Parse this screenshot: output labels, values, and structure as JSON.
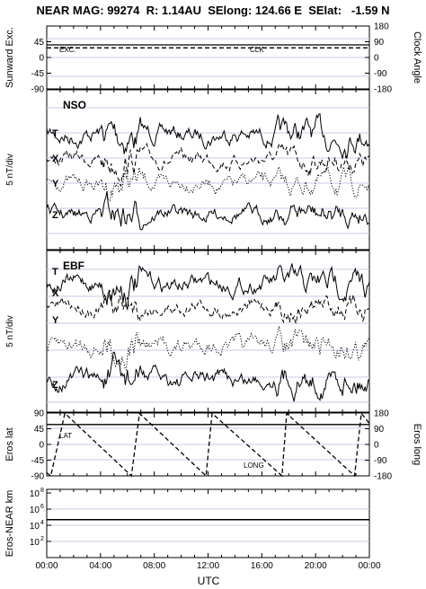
{
  "header": {
    "title": "NEAR MAG: 99274  R: 1.14AU  SElong: 124.66 E  SElat:   -1.59 N"
  },
  "x_axis": {
    "label": "UTC",
    "ticks": [
      "00:00",
      "04:00",
      "08:00",
      "12:00",
      "16:00",
      "20:00",
      "00:00"
    ]
  },
  "colors": {
    "trace": "#000000",
    "grid": "#c8c8e6"
  },
  "chart_data": [
    {
      "type": "line",
      "panel": "angles",
      "left_axis": {
        "label": "Sunward Exc.",
        "ticks": [
          "45",
          "0",
          "-45",
          "-90"
        ],
        "range": [
          -90,
          90
        ]
      },
      "right_axis": {
        "label": "Clock Angle",
        "ticks": [
          "180",
          "90",
          "0",
          "-90",
          "-180"
        ],
        "range": [
          -180,
          180
        ]
      },
      "series": [
        {
          "name": "EXC.",
          "axis": "left",
          "style": "solid",
          "x": [
            0,
            24
          ],
          "y": [
            36,
            36
          ]
        },
        {
          "name": "CLK",
          "axis": "right",
          "style": "dashed",
          "x": [
            0,
            24
          ],
          "y": [
            55,
            55
          ]
        }
      ]
    },
    {
      "type": "line",
      "panel": "NSO",
      "title": "NSO",
      "ylabel": "5 nT/div",
      "series_labels": [
        "T",
        "X",
        "Y",
        "Z"
      ],
      "series_styles": [
        "solid",
        "dashed",
        "dotted",
        "solid"
      ]
    },
    {
      "type": "line",
      "panel": "EBF",
      "title": "EBF",
      "ylabel": "5 nT/div",
      "series_labels": [
        "T",
        "X",
        "Y",
        "Z"
      ],
      "series_styles": [
        "solid",
        "dashed",
        "dotted",
        "solid"
      ]
    },
    {
      "type": "line",
      "panel": "eros_angles",
      "left_axis": {
        "label": "Eros lat",
        "ticks": [
          "90",
          "45",
          "0",
          "-45",
          "-90"
        ],
        "range": [
          -90,
          90
        ]
      },
      "right_axis": {
        "label": "Eros long",
        "ticks": [
          "180",
          "90",
          "0",
          "-90",
          "-180"
        ],
        "range": [
          -180,
          180
        ]
      },
      "series": [
        {
          "name": "LAT",
          "axis": "left",
          "style": "solid",
          "x": [
            0,
            24
          ],
          "y": [
            57,
            57
          ]
        },
        {
          "name": "LONG",
          "axis": "right",
          "style": "dashed",
          "x": [
            0.0,
            0.3,
            1.35,
            6.3,
            6.9,
            11.85,
            12.3,
            17.5,
            17.85,
            22.9,
            23.4,
            24.0
          ],
          "y": [
            -162,
            -180,
            178,
            -180,
            178,
            -180,
            178,
            -180,
            178,
            -180,
            178,
            120
          ]
        }
      ]
    },
    {
      "type": "line",
      "panel": "distance",
      "left_axis": {
        "label": "Eros-NEAR km",
        "scale": "log",
        "ticks": [
          "10^8",
          "10^6",
          "10^4",
          "10^2"
        ],
        "range": [
          1,
          100000000
        ]
      },
      "series": [
        {
          "axis": "left",
          "style": "solid",
          "x": [
            0,
            24
          ],
          "y": [
            50000,
            50000
          ]
        }
      ]
    }
  ]
}
